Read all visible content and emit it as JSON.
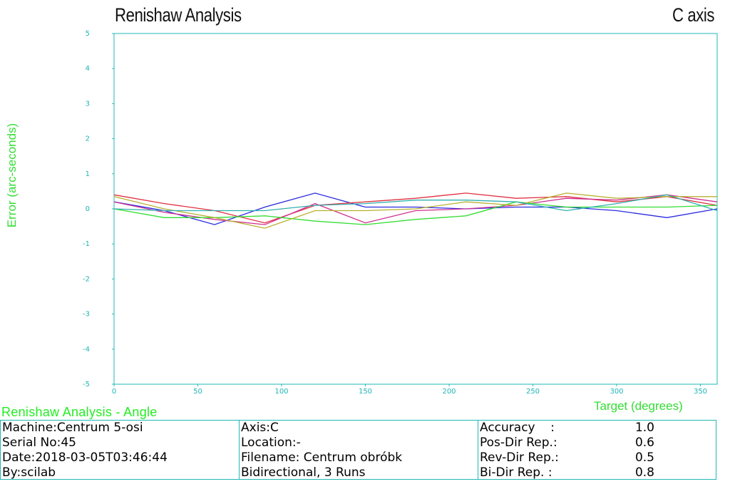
{
  "header": {
    "title": "Renishaw Analysis",
    "axis_title": "C axis"
  },
  "chart_data": {
    "type": "line",
    "xlabel": "Target (degrees)",
    "ylabel": "Error (arc-seconds)",
    "xlim": [
      0,
      360
    ],
    "ylim": [
      -5,
      5
    ],
    "x_ticks": [
      "0",
      "50",
      "100",
      "150",
      "200",
      "250",
      "300",
      "350"
    ],
    "y_ticks": [
      "5",
      "4",
      "3",
      "2",
      "1",
      "0",
      "-1",
      "-2",
      "-3",
      "-4",
      "-5"
    ],
    "x": [
      0,
      30,
      60,
      90,
      120,
      150,
      180,
      210,
      240,
      270,
      300,
      330,
      360
    ],
    "series": [
      {
        "name": "series-blue",
        "color": "#2a2ae0",
        "values": [
          0.2,
          -0.05,
          -0.45,
          0.05,
          0.45,
          0.05,
          0.05,
          0.0,
          0.05,
          0.05,
          -0.05,
          -0.25,
          0.0
        ]
      },
      {
        "name": "series-red",
        "color": "#e03040",
        "values": [
          0.4,
          0.15,
          -0.05,
          -0.4,
          0.1,
          0.2,
          0.3,
          0.45,
          0.3,
          0.35,
          0.2,
          0.35,
          0.1
        ]
      },
      {
        "name": "series-magenta",
        "color": "#d03090",
        "values": [
          0.2,
          -0.1,
          -0.3,
          -0.45,
          0.15,
          -0.4,
          -0.05,
          0.0,
          0.1,
          0.3,
          0.25,
          0.4,
          0.2
        ]
      },
      {
        "name": "series-green",
        "color": "#33dd33",
        "values": [
          0.0,
          -0.25,
          -0.25,
          -0.2,
          -0.35,
          -0.45,
          -0.3,
          -0.2,
          0.2,
          0.05,
          0.05,
          0.05,
          0.1
        ]
      },
      {
        "name": "series-olive",
        "color": "#b8b030",
        "values": [
          0.35,
          0.0,
          -0.25,
          -0.55,
          -0.05,
          -0.05,
          0.0,
          0.2,
          0.1,
          0.45,
          0.3,
          0.35,
          0.35
        ]
      },
      {
        "name": "series-cyan",
        "color": "#30b0b0",
        "values": [
          0.0,
          -0.05,
          -0.05,
          -0.05,
          0.1,
          0.15,
          0.25,
          0.25,
          0.2,
          -0.05,
          0.15,
          0.4,
          -0.05
        ]
      }
    ]
  },
  "report": {
    "title": "Renishaw Analysis - Angle",
    "machine": "Machine:Centrum 5-osi",
    "serial": "Serial No:45",
    "date": "Date:2018-03-05T03:46:44",
    "by": "By:scilab",
    "axis": "Axis:C",
    "location": "Location:-",
    "filename": "Filename: Centrum obróbk",
    "mode": "Bidirectional, 3 Runs",
    "stats": [
      {
        "label": "Accuracy    :",
        "value": "1.0"
      },
      {
        "label": "Pos-Dir Rep.:",
        "value": "0.6"
      },
      {
        "label": "Rev-Dir Rep.:",
        "value": "0.5"
      },
      {
        "label": "Bi-Dir Rep. :",
        "value": "0.8"
      }
    ]
  }
}
